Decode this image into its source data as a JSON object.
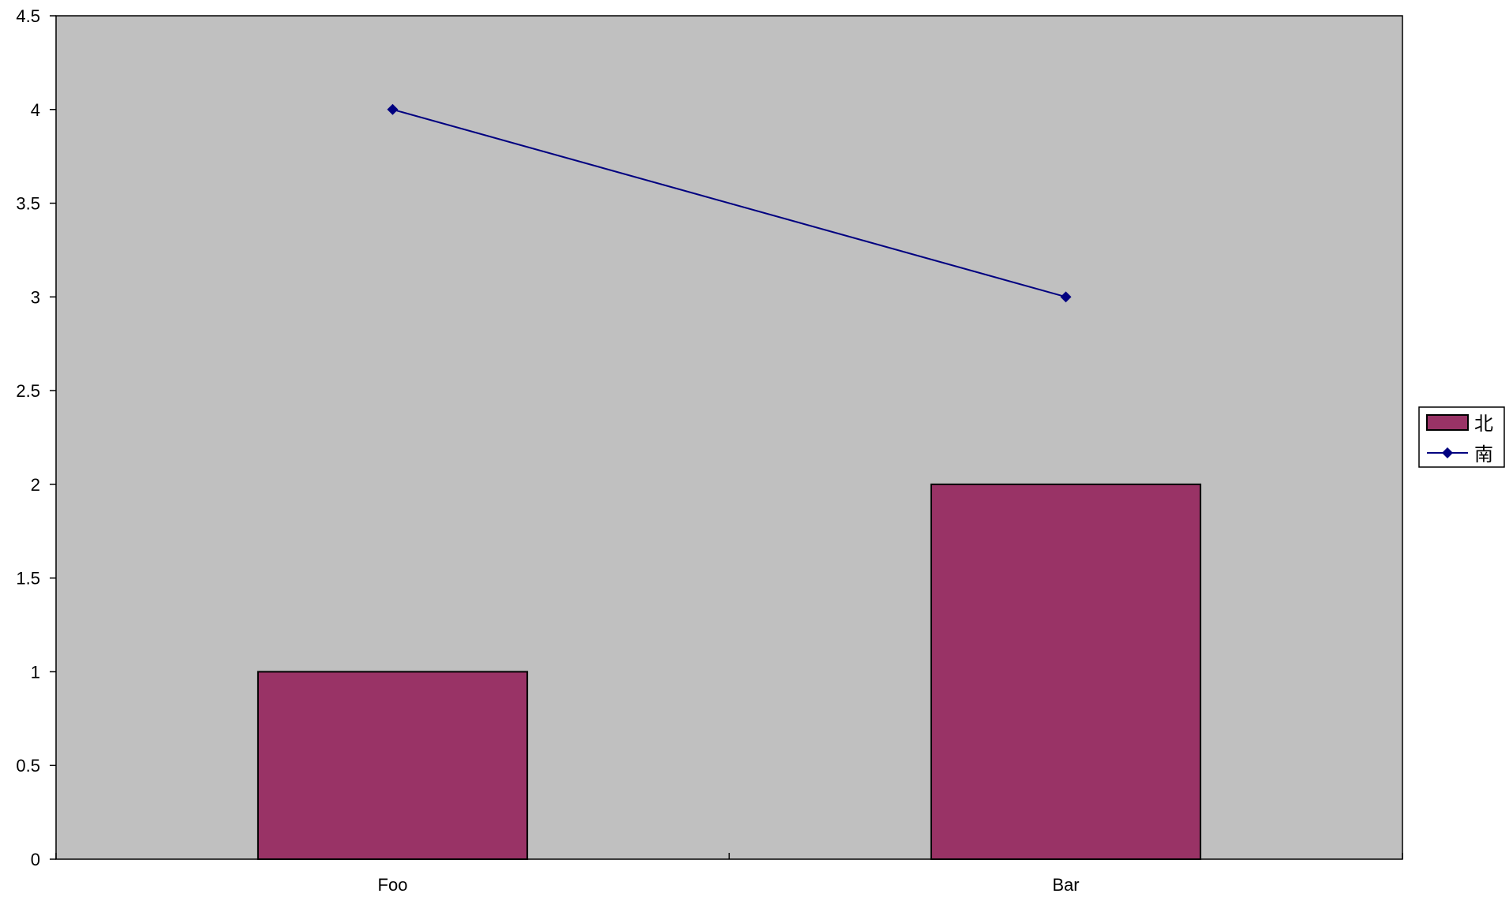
{
  "chart_data": {
    "type": "bar",
    "categories": [
      "Foo",
      "Bar"
    ],
    "series": [
      {
        "name": "北",
        "type": "bar",
        "values": [
          1,
          2
        ],
        "color": "#993366"
      },
      {
        "name": "南",
        "type": "line",
        "marker": "diamond",
        "values": [
          4,
          3
        ],
        "color": "#000080"
      }
    ],
    "title": "",
    "xlabel": "",
    "ylabel": "",
    "ylim": [
      0,
      4.5
    ],
    "yticks": [
      "0",
      "0.5",
      "1",
      "1.5",
      "2",
      "2.5",
      "3",
      "3.5",
      "4",
      "4.5"
    ],
    "grid": false,
    "legend": "right",
    "plot_background": "#C0C0C0"
  }
}
